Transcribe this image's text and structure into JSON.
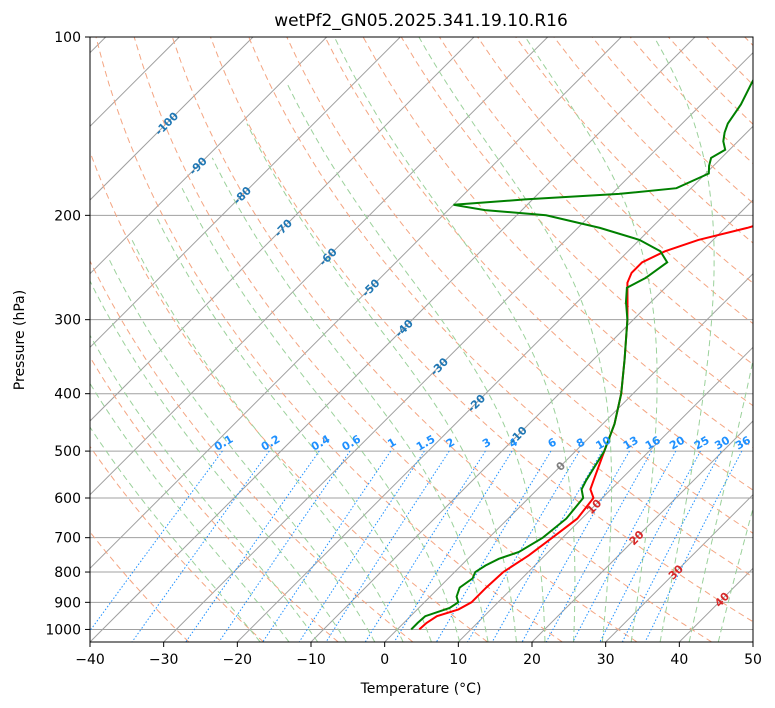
{
  "chart_data": {
    "type": "skew-t",
    "title": "wetPf2_GN05.2025.341.19.10.R16",
    "xlabel": "Temperature (°C)",
    "ylabel": "Pressure (hPa)",
    "xlim": [
      -40,
      50
    ],
    "ylim": [
      1050,
      100
    ],
    "yscale": "log",
    "grid": true,
    "x_ticks": [
      -40,
      -30,
      -20,
      -10,
      0,
      10,
      20,
      30,
      40,
      50
    ],
    "x_tick_labels": [
      "−40",
      "−30",
      "−20",
      "−10",
      "0",
      "10",
      "20",
      "30",
      "40",
      "50"
    ],
    "y_ticks": [
      100,
      200,
      300,
      400,
      500,
      600,
      700,
      800,
      900,
      1000
    ],
    "y_tick_labels": [
      "100",
      "200",
      "300",
      "400",
      "500",
      "600",
      "700",
      "800",
      "900",
      "1000"
    ],
    "series": [
      {
        "color": "#ff0000",
        "role": "temperature",
        "points": [
          [
            1000,
            3.0
          ],
          [
            975,
            3.1
          ],
          [
            950,
            3.6
          ],
          [
            925,
            5.6
          ],
          [
            900,
            6.4
          ],
          [
            850,
            6.4
          ],
          [
            800,
            6.6
          ],
          [
            750,
            7.8
          ],
          [
            700,
            8.6
          ],
          [
            650,
            9.4
          ],
          [
            600,
            8.8
          ],
          [
            580,
            7.2
          ],
          [
            560,
            6.4
          ],
          [
            500,
            3.9
          ],
          [
            450,
            1.6
          ],
          [
            400,
            -1.6
          ],
          [
            350,
            -5.8
          ],
          [
            300,
            -10.8
          ],
          [
            280,
            -13.2
          ],
          [
            260,
            -15.8
          ],
          [
            250,
            -16.6
          ],
          [
            240,
            -16.6
          ],
          [
            230,
            -15.0
          ],
          [
            220,
            -12.0
          ],
          [
            210,
            -7.0
          ],
          [
            200,
            -3.0
          ],
          [
            190,
            -0.8
          ],
          [
            180,
            -1.0
          ],
          [
            170,
            -1.4
          ],
          [
            160,
            -2.0
          ],
          [
            150,
            -2.0
          ],
          [
            140,
            -1.6
          ],
          [
            130,
            -2.4
          ],
          [
            120,
            -2.8
          ],
          [
            110,
            -2.6
          ],
          [
            100,
            -2.6
          ]
        ]
      },
      {
        "color": "#008000",
        "role": "dewpoint",
        "points": [
          [
            1000,
            1.9
          ],
          [
            975,
            1.9
          ],
          [
            950,
            2.0
          ],
          [
            920,
            4.2
          ],
          [
            900,
            4.6
          ],
          [
            880,
            3.6
          ],
          [
            850,
            2.8
          ],
          [
            820,
            3.3
          ],
          [
            800,
            2.8
          ],
          [
            780,
            3.3
          ],
          [
            760,
            4.2
          ],
          [
            740,
            6.0
          ],
          [
            700,
            7.3
          ],
          [
            650,
            7.9
          ],
          [
            600,
            7.4
          ],
          [
            580,
            6.0
          ],
          [
            560,
            5.4
          ],
          [
            500,
            3.9
          ],
          [
            450,
            1.6
          ],
          [
            400,
            -1.6
          ],
          [
            350,
            -5.8
          ],
          [
            300,
            -10.8
          ],
          [
            280,
            -13.4
          ],
          [
            265,
            -15.2
          ],
          [
            255,
            -14.0
          ],
          [
            240,
            -13.2
          ],
          [
            230,
            -15.6
          ],
          [
            220,
            -20.0
          ],
          [
            210,
            -27.0
          ],
          [
            200,
            -36.0
          ],
          [
            196,
            -45.0
          ],
          [
            192,
            -50.0
          ],
          [
            188,
            -41.0
          ],
          [
            184,
            -29.0
          ],
          [
            180,
            -22.0
          ],
          [
            170,
            -19.6
          ],
          [
            165,
            -20.6
          ],
          [
            160,
            -21.4
          ],
          [
            155,
            -20.6
          ],
          [
            150,
            -22.0
          ],
          [
            145,
            -23.0
          ],
          [
            140,
            -23.8
          ],
          [
            130,
            -24.6
          ],
          [
            120,
            -26.0
          ],
          [
            110,
            -27.4
          ],
          [
            100,
            -29.0
          ]
        ]
      }
    ],
    "dry_adiabat_labels": [
      "-100",
      "-90",
      "-80",
      "-70",
      "-60",
      "-50",
      "-40",
      "-30",
      "-20",
      "-10"
    ],
    "moist_adiabat_labels": [
      "0",
      "10",
      "20",
      "30",
      "40"
    ],
    "mixing_ratio_labels": [
      "0.1",
      "0.2",
      "0.4",
      "0.6",
      "1",
      "1.5",
      "2",
      "3",
      "4",
      "6",
      "8",
      "10",
      "13",
      "16",
      "20",
      "25",
      "30",
      "36"
    ],
    "colors": {
      "temperature": "#ff0000",
      "dewpoint": "#008000",
      "dry_adiabat": "#f4a582",
      "moist_adiabat": "#9bd19b",
      "mixing_ratio": "#1e90ff",
      "isotherm": "#a0a0a0"
    }
  }
}
